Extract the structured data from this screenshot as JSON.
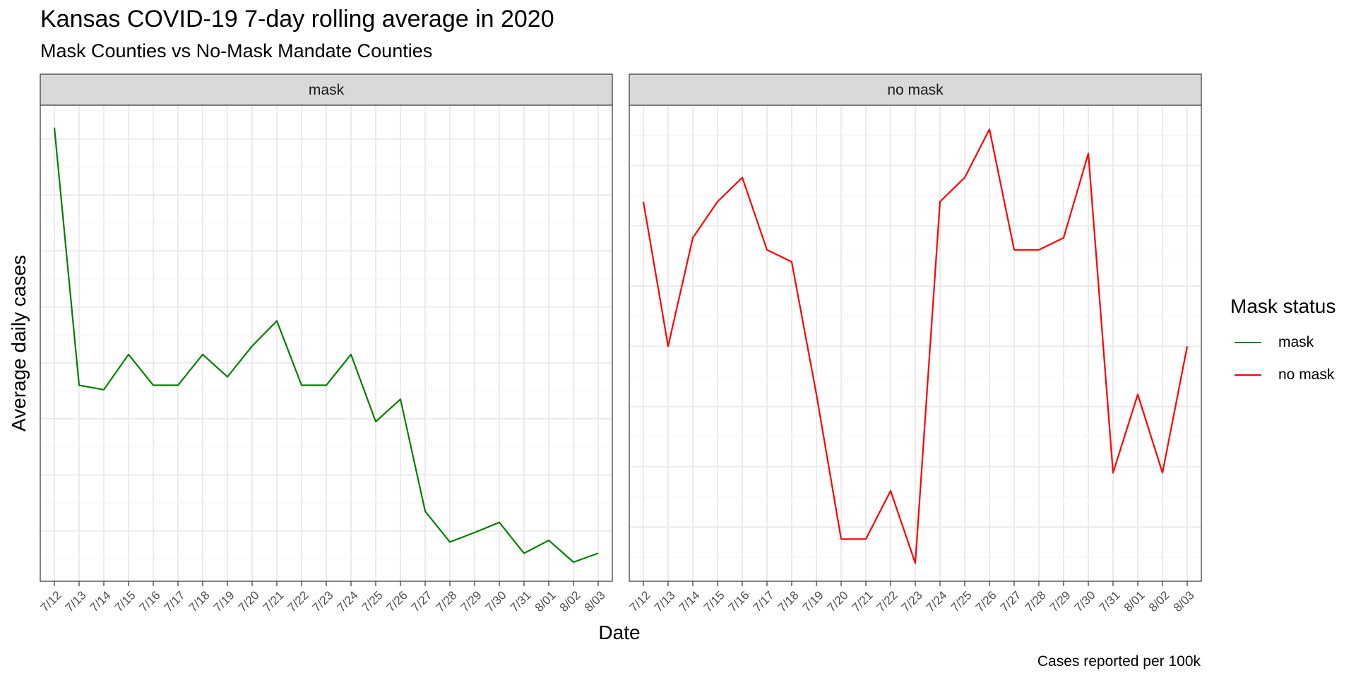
{
  "chart_data": {
    "type": "line",
    "title": "Kansas COVID-19 7-day rolling average in 2020",
    "subtitle": "Mask Counties vs No-Mask Mandate Counties",
    "xlabel": "Date",
    "ylabel": "Average daily cases",
    "caption": "Cases reported per 100k",
    "legend_title": "Mask status",
    "legend_position": "right",
    "grid": true,
    "y_tick_labels_shown": false,
    "categories": [
      "7/12",
      "7/13",
      "7/14",
      "7/15",
      "7/16",
      "7/17",
      "7/18",
      "7/19",
      "7/20",
      "7/21",
      "7/22",
      "7/23",
      "7/24",
      "7/25",
      "7/26",
      "7/27",
      "7/28",
      "7/29",
      "7/30",
      "7/31",
      "8/01",
      "8/02",
      "8/03"
    ],
    "panels": [
      {
        "label": "mask",
        "ylim": [
          0.1,
          8.6
        ],
        "series": [
          {
            "name": "mask",
            "color": "#008000",
            "values": [
              8.2,
              3.6,
              3.52,
              4.15,
              3.6,
              3.6,
              4.15,
              3.75,
              4.3,
              4.75,
              3.6,
              3.6,
              4.15,
              2.95,
              3.35,
              1.35,
              0.8,
              0.97,
              1.15,
              0.6,
              0.83,
              0.44,
              0.6
            ]
          }
        ]
      },
      {
        "label": "no mask",
        "ylim": [
          0.1,
          8.0
        ],
        "series": [
          {
            "name": "no mask",
            "color": "#ff0000",
            "values": [
              6.4,
              4.0,
              5.8,
              6.4,
              6.8,
              5.6,
              5.4,
              3.2,
              0.8,
              0.8,
              1.6,
              0.4,
              6.4,
              6.8,
              7.6,
              5.6,
              5.6,
              5.8,
              7.2,
              1.9,
              3.2,
              1.9,
              4.0
            ]
          }
        ]
      }
    ]
  }
}
